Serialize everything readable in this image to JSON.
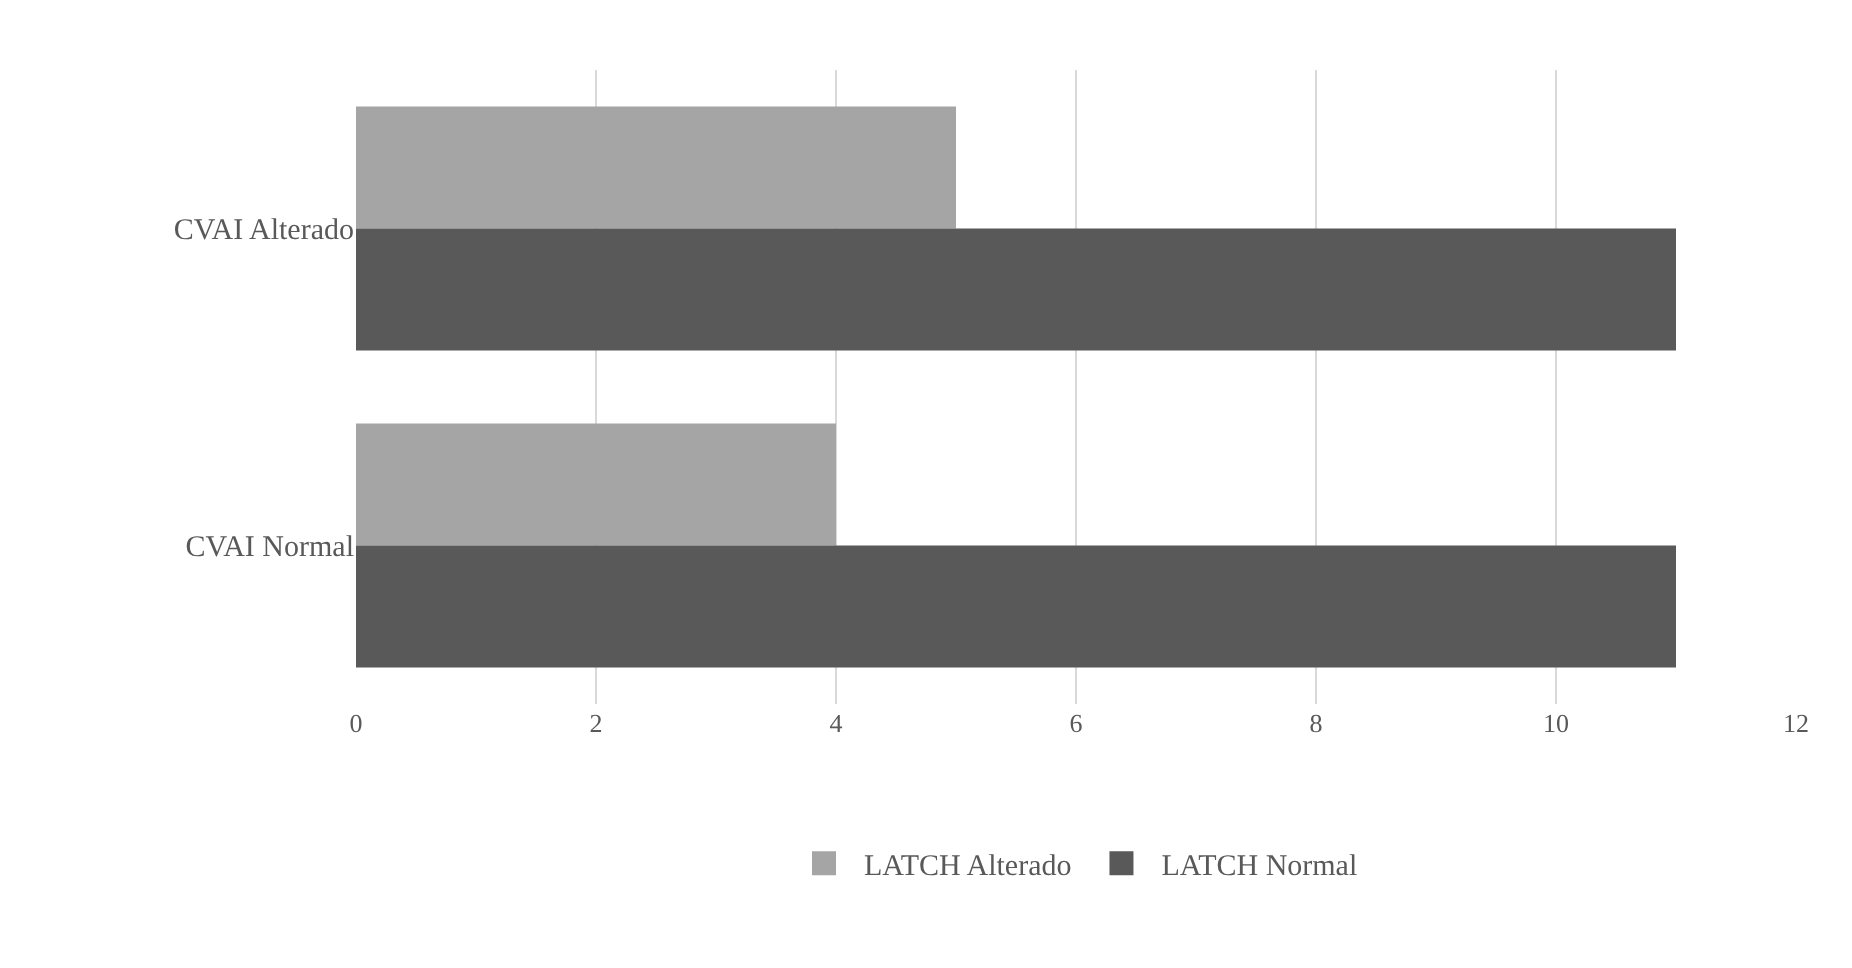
{
  "chart_data": {
    "type": "bar",
    "orientation": "horizontal",
    "categories": [
      "CVAI Alterado",
      "CVAI Normal"
    ],
    "series": [
      {
        "name": "LATCH Alterado",
        "color": "#a5a5a5",
        "values": [
          5,
          4
        ]
      },
      {
        "name": "LATCH Normal",
        "color": "#595959",
        "values": [
          11,
          11
        ]
      }
    ],
    "xlim": [
      0,
      12
    ],
    "xticks": [
      0,
      2,
      4,
      6,
      8,
      10,
      12
    ],
    "grid": "x",
    "legend": "bottom"
  }
}
